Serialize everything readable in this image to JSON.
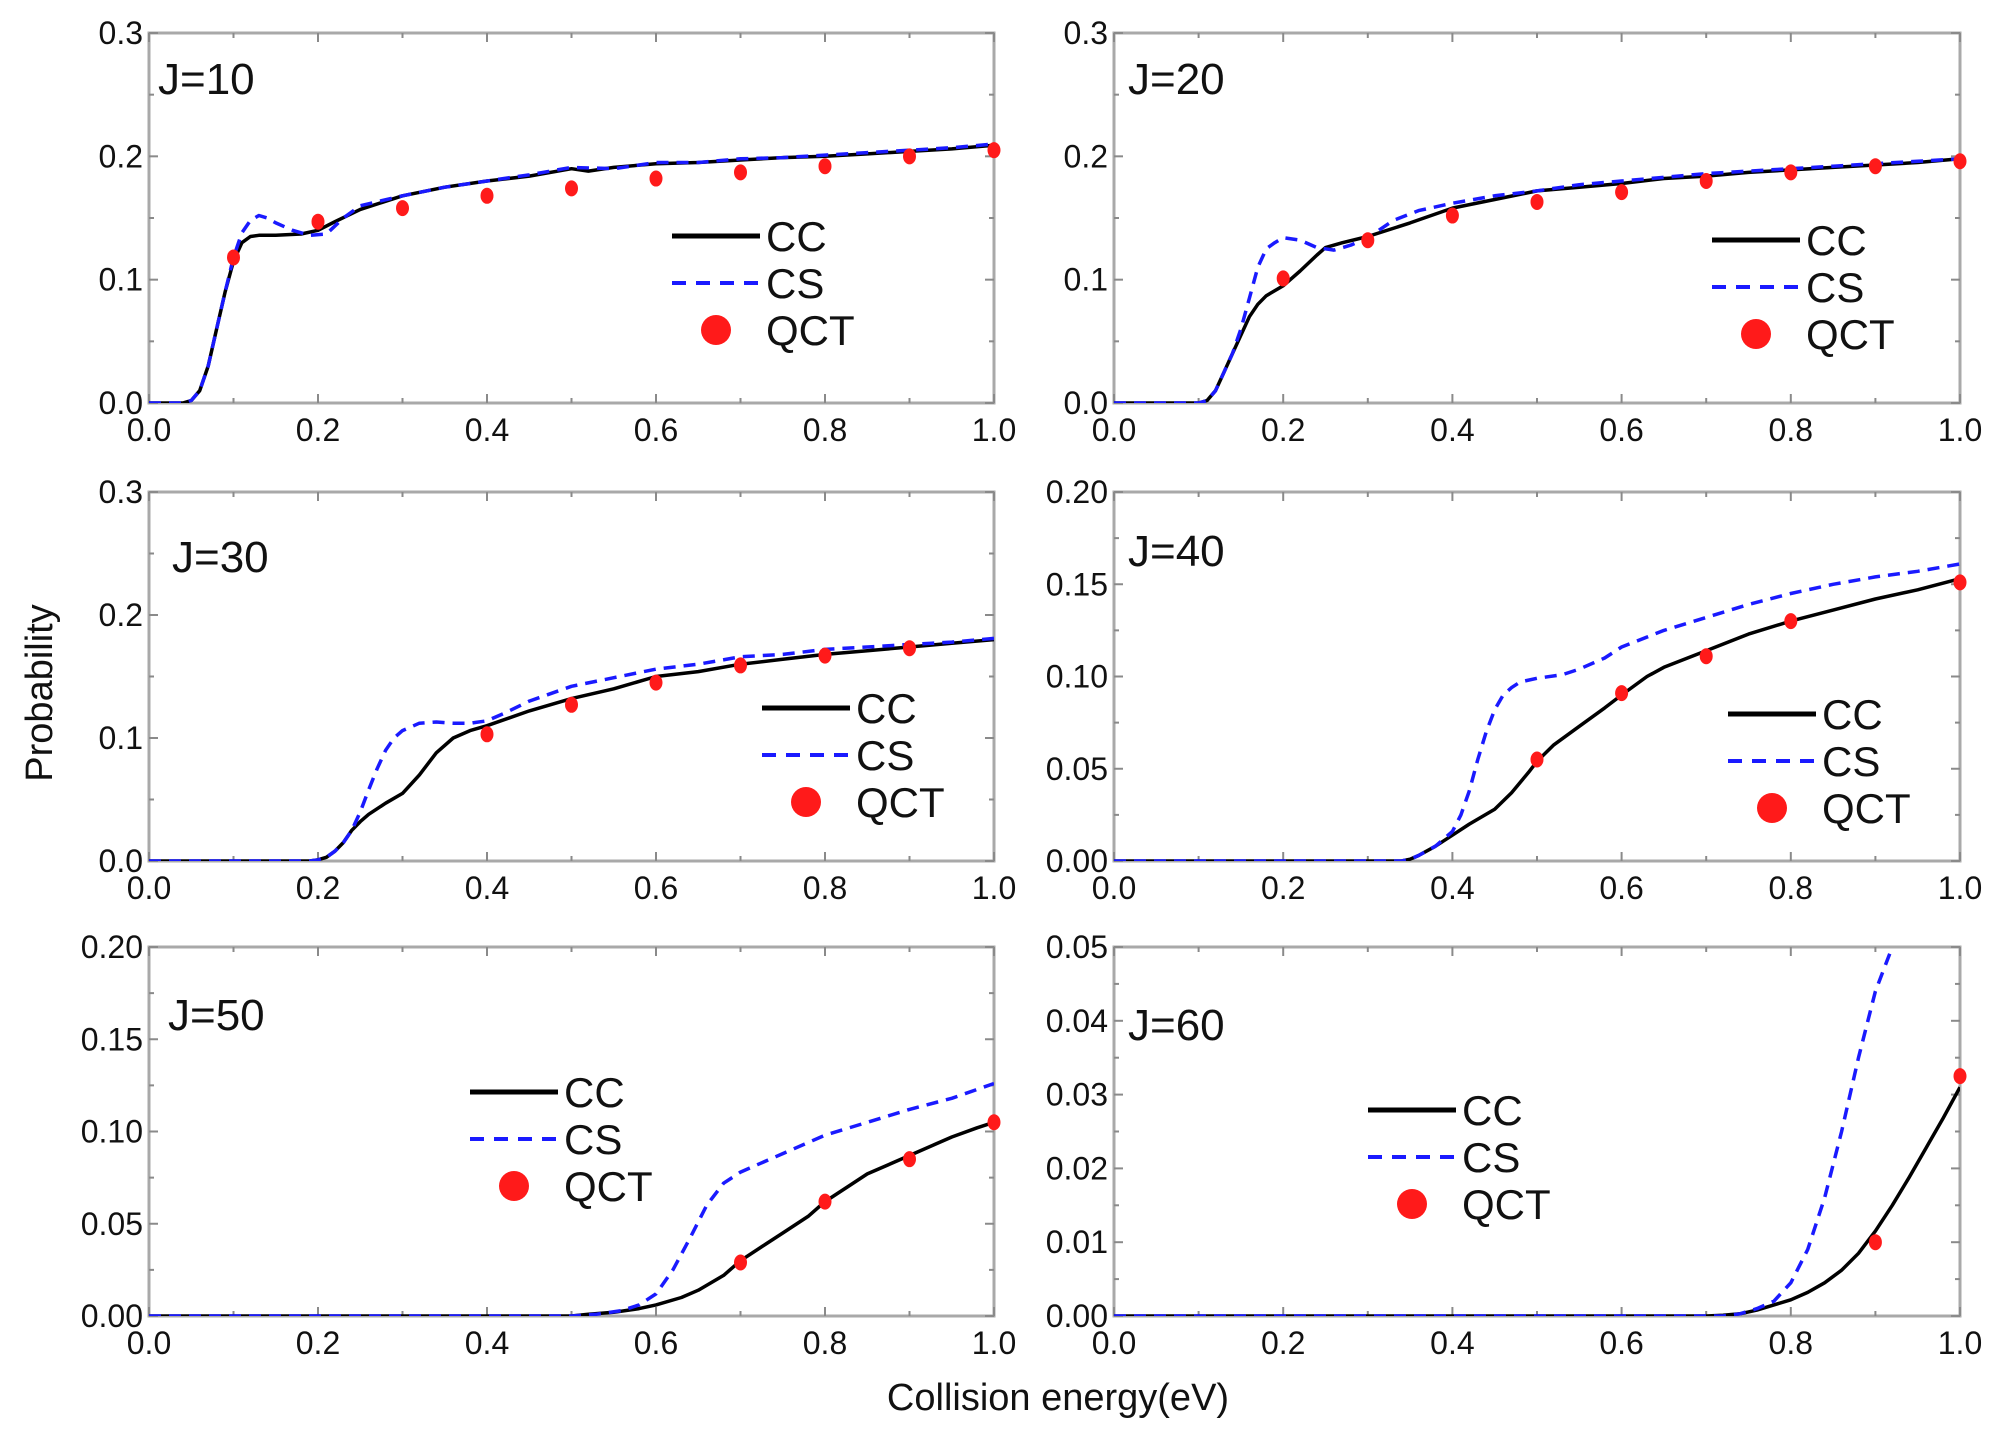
{
  "figure": {
    "xlabel": "Collision energy(eV)",
    "ylabel": "Probability",
    "colors": {
      "CC": "#000000",
      "CS": "#1a1aff",
      "QCT": "#ff1a1a",
      "frame": "#a9a9a9"
    }
  },
  "chart_data": [
    {
      "type": "line",
      "title": "J=10",
      "xlabel": "Collision energy(eV)",
      "ylabel": "Probability",
      "xlim": [
        0.0,
        1.0
      ],
      "ylim": [
        0.0,
        0.3
      ],
      "xticks": [
        "0.0",
        "0.2",
        "0.4",
        "0.6",
        "0.8",
        "1.0"
      ],
      "yticks": [
        "0.0",
        "0.1",
        "0.2",
        "0.3"
      ],
      "legend": [
        "CC",
        "CS",
        "QCT"
      ],
      "legend_position": "center-right",
      "series": [
        {
          "name": "CC",
          "style": "solid",
          "x": [
            0,
            0.04,
            0.05,
            0.06,
            0.07,
            0.08,
            0.09,
            0.1,
            0.11,
            0.12,
            0.13,
            0.15,
            0.18,
            0.2,
            0.22,
            0.25,
            0.3,
            0.35,
            0.4,
            0.45,
            0.5,
            0.52,
            0.55,
            0.6,
            0.65,
            0.7,
            0.75,
            0.8,
            0.85,
            0.9,
            0.95,
            1.0
          ],
          "y": [
            0,
            0,
            0.002,
            0.01,
            0.03,
            0.06,
            0.09,
            0.115,
            0.13,
            0.135,
            0.136,
            0.136,
            0.137,
            0.14,
            0.147,
            0.157,
            0.168,
            0.175,
            0.18,
            0.184,
            0.19,
            0.188,
            0.191,
            0.194,
            0.195,
            0.197,
            0.199,
            0.2,
            0.202,
            0.204,
            0.206,
            0.209
          ]
        },
        {
          "name": "CS",
          "style": "dashed",
          "x": [
            0,
            0.04,
            0.05,
            0.06,
            0.07,
            0.08,
            0.09,
            0.1,
            0.11,
            0.12,
            0.13,
            0.14,
            0.15,
            0.17,
            0.19,
            0.21,
            0.23,
            0.25,
            0.3,
            0.35,
            0.4,
            0.45,
            0.5,
            0.55,
            0.6,
            0.65,
            0.7,
            0.75,
            0.8,
            0.85,
            0.9,
            0.95,
            1.0
          ],
          "y": [
            0,
            0,
            0.002,
            0.01,
            0.03,
            0.06,
            0.09,
            0.118,
            0.138,
            0.148,
            0.152,
            0.15,
            0.146,
            0.14,
            0.136,
            0.137,
            0.15,
            0.16,
            0.168,
            0.175,
            0.18,
            0.185,
            0.191,
            0.19,
            0.195,
            0.195,
            0.198,
            0.199,
            0.201,
            0.203,
            0.205,
            0.207,
            0.21
          ]
        },
        {
          "name": "QCT",
          "style": "marker",
          "x": [
            0.1,
            0.2,
            0.3,
            0.4,
            0.5,
            0.6,
            0.7,
            0.8,
            0.9,
            1.0
          ],
          "y": [
            0.118,
            0.147,
            0.158,
            0.168,
            0.174,
            0.182,
            0.187,
            0.192,
            0.2,
            0.205
          ]
        }
      ]
    },
    {
      "type": "line",
      "title": "J=20",
      "xlabel": "Collision energy(eV)",
      "ylabel": "Probability",
      "xlim": [
        0.0,
        1.0
      ],
      "ylim": [
        0.0,
        0.3
      ],
      "xticks": [
        "0.0",
        "0.2",
        "0.4",
        "0.6",
        "0.8",
        "1.0"
      ],
      "yticks": [
        "0.0",
        "0.1",
        "0.2",
        "0.3"
      ],
      "legend": [
        "CC",
        "CS",
        "QCT"
      ],
      "legend_position": "center-right",
      "series": [
        {
          "name": "CC",
          "style": "solid",
          "x": [
            0,
            0.1,
            0.11,
            0.12,
            0.13,
            0.14,
            0.15,
            0.16,
            0.17,
            0.18,
            0.2,
            0.22,
            0.24,
            0.25,
            0.27,
            0.3,
            0.35,
            0.4,
            0.45,
            0.5,
            0.55,
            0.6,
            0.65,
            0.7,
            0.75,
            0.8,
            0.85,
            0.9,
            0.95,
            1.0
          ],
          "y": [
            0,
            0,
            0.002,
            0.01,
            0.025,
            0.04,
            0.055,
            0.07,
            0.08,
            0.087,
            0.095,
            0.107,
            0.12,
            0.126,
            0.13,
            0.135,
            0.146,
            0.158,
            0.165,
            0.172,
            0.175,
            0.178,
            0.182,
            0.184,
            0.187,
            0.189,
            0.191,
            0.193,
            0.195,
            0.198
          ]
        },
        {
          "name": "CS",
          "style": "dashed",
          "x": [
            0,
            0.1,
            0.11,
            0.12,
            0.13,
            0.14,
            0.15,
            0.16,
            0.17,
            0.18,
            0.19,
            0.2,
            0.22,
            0.24,
            0.26,
            0.28,
            0.3,
            0.33,
            0.36,
            0.4,
            0.45,
            0.5,
            0.55,
            0.6,
            0.65,
            0.7,
            0.75,
            0.8,
            0.85,
            0.9,
            0.95,
            1.0
          ],
          "y": [
            0,
            0,
            0.002,
            0.01,
            0.025,
            0.04,
            0.06,
            0.085,
            0.11,
            0.125,
            0.13,
            0.134,
            0.132,
            0.126,
            0.124,
            0.128,
            0.134,
            0.148,
            0.156,
            0.162,
            0.168,
            0.172,
            0.177,
            0.18,
            0.183,
            0.186,
            0.188,
            0.19,
            0.192,
            0.194,
            0.196,
            0.198
          ]
        },
        {
          "name": "QCT",
          "style": "marker",
          "x": [
            0.2,
            0.3,
            0.4,
            0.5,
            0.6,
            0.7,
            0.8,
            0.9,
            1.0
          ],
          "y": [
            0.101,
            0.132,
            0.152,
            0.163,
            0.171,
            0.18,
            0.187,
            0.192,
            0.196
          ]
        }
      ]
    },
    {
      "type": "line",
      "title": "J=30",
      "xlabel": "Collision energy(eV)",
      "ylabel": "Probability",
      "xlim": [
        0.0,
        1.0
      ],
      "ylim": [
        0.0,
        0.3
      ],
      "xticks": [
        "0.0",
        "0.2",
        "0.4",
        "0.6",
        "0.8",
        "1.0"
      ],
      "yticks": [
        "0.0",
        "0.1",
        "0.2",
        "0.3"
      ],
      "legend": [
        "CC",
        "CS",
        "QCT"
      ],
      "legend_position": "center-right",
      "series": [
        {
          "name": "CC",
          "style": "solid",
          "x": [
            0,
            0.19,
            0.2,
            0.21,
            0.22,
            0.23,
            0.24,
            0.25,
            0.26,
            0.28,
            0.3,
            0.32,
            0.34,
            0.36,
            0.38,
            0.4,
            0.45,
            0.5,
            0.55,
            0.6,
            0.65,
            0.7,
            0.75,
            0.8,
            0.85,
            0.9,
            0.95,
            1.0
          ],
          "y": [
            0,
            0,
            0.001,
            0.003,
            0.008,
            0.015,
            0.025,
            0.032,
            0.038,
            0.047,
            0.055,
            0.07,
            0.088,
            0.1,
            0.106,
            0.11,
            0.122,
            0.132,
            0.14,
            0.15,
            0.154,
            0.16,
            0.164,
            0.168,
            0.171,
            0.174,
            0.177,
            0.18
          ]
        },
        {
          "name": "CS",
          "style": "dashed",
          "x": [
            0,
            0.19,
            0.2,
            0.21,
            0.22,
            0.23,
            0.24,
            0.25,
            0.26,
            0.27,
            0.28,
            0.29,
            0.3,
            0.32,
            0.34,
            0.36,
            0.38,
            0.4,
            0.42,
            0.45,
            0.5,
            0.55,
            0.6,
            0.65,
            0.7,
            0.75,
            0.8,
            0.85,
            0.9,
            0.95,
            1.0
          ],
          "y": [
            0,
            0,
            0.001,
            0.003,
            0.008,
            0.015,
            0.025,
            0.04,
            0.058,
            0.075,
            0.09,
            0.1,
            0.106,
            0.112,
            0.113,
            0.112,
            0.112,
            0.114,
            0.12,
            0.13,
            0.142,
            0.149,
            0.156,
            0.16,
            0.166,
            0.168,
            0.172,
            0.174,
            0.176,
            0.178,
            0.181
          ]
        },
        {
          "name": "QCT",
          "style": "marker",
          "x": [
            0.4,
            0.5,
            0.6,
            0.7,
            0.8,
            0.9
          ],
          "y": [
            0.103,
            0.127,
            0.145,
            0.159,
            0.167,
            0.173
          ]
        }
      ]
    },
    {
      "type": "line",
      "title": "J=40",
      "xlabel": "Collision energy(eV)",
      "ylabel": "Probability",
      "xlim": [
        0.0,
        1.0
      ],
      "ylim": [
        0.0,
        0.2
      ],
      "xticks": [
        "0.0",
        "0.2",
        "0.4",
        "0.6",
        "0.8",
        "1.0"
      ],
      "yticks": [
        "0.00",
        "0.05",
        "0.10",
        "0.15",
        "0.20"
      ],
      "legend": [
        "CC",
        "CS",
        "QCT"
      ],
      "legend_position": "center-right",
      "series": [
        {
          "name": "CC",
          "style": "solid",
          "x": [
            0,
            0.34,
            0.35,
            0.36,
            0.38,
            0.4,
            0.42,
            0.45,
            0.47,
            0.49,
            0.5,
            0.52,
            0.55,
            0.58,
            0.6,
            0.63,
            0.65,
            0.7,
            0.75,
            0.8,
            0.85,
            0.9,
            0.95,
            1.0
          ],
          "y": [
            0,
            0,
            0.001,
            0.003,
            0.008,
            0.014,
            0.02,
            0.028,
            0.037,
            0.048,
            0.054,
            0.063,
            0.073,
            0.083,
            0.09,
            0.1,
            0.105,
            0.114,
            0.123,
            0.13,
            0.136,
            0.142,
            0.147,
            0.153
          ]
        },
        {
          "name": "CS",
          "style": "dashed",
          "x": [
            0,
            0.34,
            0.35,
            0.36,
            0.38,
            0.4,
            0.41,
            0.42,
            0.43,
            0.44,
            0.45,
            0.46,
            0.47,
            0.48,
            0.5,
            0.53,
            0.55,
            0.58,
            0.6,
            0.65,
            0.7,
            0.75,
            0.8,
            0.85,
            0.9,
            0.95,
            1.0
          ],
          "y": [
            0,
            0,
            0.001,
            0.003,
            0.008,
            0.016,
            0.025,
            0.038,
            0.055,
            0.07,
            0.082,
            0.09,
            0.094,
            0.097,
            0.099,
            0.101,
            0.104,
            0.11,
            0.116,
            0.125,
            0.132,
            0.139,
            0.145,
            0.15,
            0.154,
            0.157,
            0.161
          ]
        },
        {
          "name": "QCT",
          "style": "marker",
          "x": [
            0.5,
            0.6,
            0.7,
            0.8,
            1.0
          ],
          "y": [
            0.055,
            0.091,
            0.111,
            0.13,
            0.151
          ]
        }
      ]
    },
    {
      "type": "line",
      "title": "J=50",
      "xlabel": "Collision energy(eV)",
      "ylabel": "Probability",
      "xlim": [
        0.0,
        1.0
      ],
      "ylim": [
        0.0,
        0.2
      ],
      "xticks": [
        "0.0",
        "0.2",
        "0.4",
        "0.6",
        "0.8",
        "1.0"
      ],
      "yticks": [
        "0.00",
        "0.05",
        "0.10",
        "0.15",
        "0.20"
      ],
      "legend": [
        "CC",
        "CS",
        "QCT"
      ],
      "legend_position": "center",
      "series": [
        {
          "name": "CC",
          "style": "solid",
          "x": [
            0,
            0.5,
            0.52,
            0.55,
            0.58,
            0.6,
            0.63,
            0.65,
            0.68,
            0.7,
            0.73,
            0.75,
            0.78,
            0.8,
            0.83,
            0.85,
            0.88,
            0.9,
            0.93,
            0.95,
            0.98,
            1.0
          ],
          "y": [
            0,
            0,
            0.001,
            0.002,
            0.004,
            0.006,
            0.01,
            0.014,
            0.022,
            0.03,
            0.039,
            0.045,
            0.054,
            0.062,
            0.071,
            0.077,
            0.083,
            0.087,
            0.093,
            0.097,
            0.102,
            0.105
          ]
        },
        {
          "name": "CS",
          "style": "dashed",
          "x": [
            0,
            0.5,
            0.53,
            0.56,
            0.58,
            0.6,
            0.62,
            0.64,
            0.66,
            0.68,
            0.7,
            0.72,
            0.75,
            0.8,
            0.85,
            0.9,
            0.95,
            1.0
          ],
          "y": [
            0,
            0,
            0.001,
            0.003,
            0.006,
            0.012,
            0.025,
            0.042,
            0.06,
            0.072,
            0.078,
            0.082,
            0.088,
            0.098,
            0.105,
            0.112,
            0.118,
            0.126
          ]
        },
        {
          "name": "QCT",
          "style": "marker",
          "x": [
            0.7,
            0.8,
            0.9,
            1.0
          ],
          "y": [
            0.029,
            0.062,
            0.085,
            0.105
          ]
        }
      ]
    },
    {
      "type": "line",
      "title": "J=60",
      "xlabel": "Collision energy(eV)",
      "ylabel": "Probability",
      "xlim": [
        0.0,
        1.0
      ],
      "ylim": [
        0.0,
        0.05
      ],
      "xticks": [
        "0.0",
        "0.2",
        "0.4",
        "0.6",
        "0.8",
        "1.0"
      ],
      "yticks": [
        "0.00",
        "0.01",
        "0.02",
        "0.03",
        "0.04",
        "0.05"
      ],
      "legend": [
        "CC",
        "CS",
        "QCT"
      ],
      "legend_position": "center",
      "series": [
        {
          "name": "CC",
          "style": "solid",
          "x": [
            0,
            0.7,
            0.72,
            0.74,
            0.76,
            0.78,
            0.8,
            0.82,
            0.84,
            0.86,
            0.88,
            0.9,
            0.92,
            0.94,
            0.96,
            0.98,
            1.0
          ],
          "y": [
            0,
            0,
            0.0001,
            0.0003,
            0.0008,
            0.0015,
            0.0022,
            0.0032,
            0.0045,
            0.0062,
            0.0085,
            0.0115,
            0.015,
            0.0188,
            0.0228,
            0.0268,
            0.031
          ]
        },
        {
          "name": "CS",
          "style": "dashed",
          "x": [
            0,
            0.72,
            0.74,
            0.76,
            0.78,
            0.8,
            0.82,
            0.84,
            0.86,
            0.88,
            0.9,
            0.92
          ],
          "y": [
            0,
            0,
            0.0003,
            0.001,
            0.002,
            0.0045,
            0.009,
            0.016,
            0.025,
            0.035,
            0.044,
            0.05
          ]
        },
        {
          "name": "QCT",
          "style": "marker",
          "x": [
            0.9,
            1.0
          ],
          "y": [
            0.01,
            0.0325
          ]
        }
      ]
    }
  ]
}
